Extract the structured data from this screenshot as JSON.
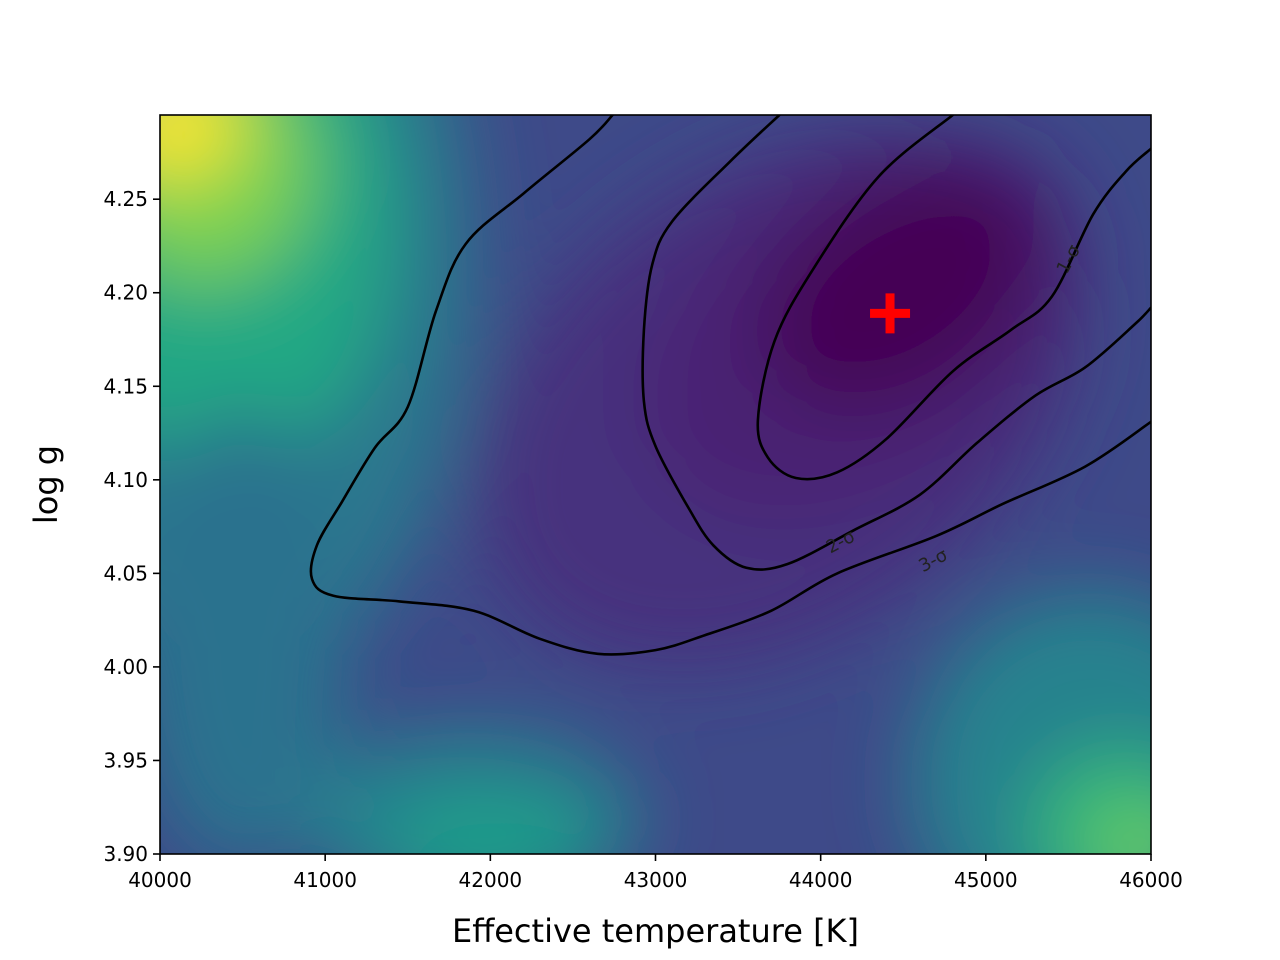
{
  "chart_data": {
    "type": "heatmap",
    "title": "",
    "xlabel": "Effective temperature [K]",
    "ylabel": "log g",
    "xlim": [
      40000,
      46000
    ],
    "ylim": [
      3.9,
      4.295
    ],
    "x_ticks": [
      {
        "value": 40000,
        "label": "40000"
      },
      {
        "value": 41000,
        "label": "41000"
      },
      {
        "value": 42000,
        "label": "42000"
      },
      {
        "value": 43000,
        "label": "43000"
      },
      {
        "value": 44000,
        "label": "44000"
      },
      {
        "value": 45000,
        "label": "45000"
      },
      {
        "value": 46000,
        "label": "46000"
      }
    ],
    "y_ticks": [
      {
        "value": 3.9,
        "label": "3.90"
      },
      {
        "value": 3.95,
        "label": "3.95"
      },
      {
        "value": 4.0,
        "label": "4.00"
      },
      {
        "value": 4.05,
        "label": "4.05"
      },
      {
        "value": 4.1,
        "label": "4.10"
      },
      {
        "value": 4.15,
        "label": "4.15"
      },
      {
        "value": 4.2,
        "label": "4.20"
      },
      {
        "value": 4.25,
        "label": "4.25"
      }
    ],
    "colormap": "viridis",
    "grid": false,
    "best_fit": {
      "teff": 44420,
      "logg": 4.189,
      "marker": "plus",
      "color": "#ff0000"
    },
    "contours": [
      {
        "label": "1-σ",
        "label_at": {
          "teff": 45500,
          "logg": 4.218,
          "angle": -62
        },
        "points": [
          [
            44800,
            4.295
          ],
          [
            44350,
            4.262
          ],
          [
            43950,
            4.212
          ],
          [
            43720,
            4.174
          ],
          [
            43620,
            4.132
          ],
          [
            43680,
            4.112
          ],
          [
            43850,
            4.101
          ],
          [
            44100,
            4.104
          ],
          [
            44400,
            4.122
          ],
          [
            44800,
            4.158
          ],
          [
            45150,
            4.18
          ],
          [
            45400,
            4.198
          ],
          [
            45650,
            4.242
          ],
          [
            45850,
            4.265
          ],
          [
            46000,
            4.277
          ]
        ]
      },
      {
        "label": "2-σ",
        "label_at": {
          "teff": 44120,
          "logg": 4.067,
          "angle": -28
        },
        "points": [
          [
            43750,
            4.295
          ],
          [
            43450,
            4.27
          ],
          [
            43100,
            4.238
          ],
          [
            42980,
            4.215
          ],
          [
            42930,
            4.18
          ],
          [
            42930,
            4.142
          ],
          [
            43000,
            4.118
          ],
          [
            43200,
            4.085
          ],
          [
            43350,
            4.065
          ],
          [
            43550,
            4.053
          ],
          [
            43800,
            4.055
          ],
          [
            44200,
            4.073
          ],
          [
            44600,
            4.092
          ],
          [
            44950,
            4.12
          ],
          [
            45300,
            4.145
          ],
          [
            45600,
            4.16
          ],
          [
            45900,
            4.183
          ],
          [
            46000,
            4.192
          ]
        ]
      },
      {
        "label": "3-σ",
        "label_at": {
          "teff": 44680,
          "logg": 4.057,
          "angle": -28
        },
        "points": [
          [
            42740,
            4.295
          ],
          [
            42600,
            4.282
          ],
          [
            42200,
            4.253
          ],
          [
            41850,
            4.226
          ],
          [
            41670,
            4.19
          ],
          [
            41500,
            4.139
          ],
          [
            41300,
            4.117
          ],
          [
            41100,
            4.088
          ],
          [
            40950,
            4.065
          ],
          [
            40920,
            4.047
          ],
          [
            41050,
            4.038
          ],
          [
            41450,
            4.035
          ],
          [
            41900,
            4.03
          ],
          [
            42300,
            4.015
          ],
          [
            42650,
            4.007
          ],
          [
            43000,
            4.009
          ],
          [
            43300,
            4.017
          ],
          [
            43700,
            4.03
          ],
          [
            44100,
            4.05
          ],
          [
            44700,
            4.07
          ],
          [
            45100,
            4.087
          ],
          [
            45600,
            4.107
          ],
          [
            46000,
            4.131
          ]
        ]
      }
    ]
  }
}
